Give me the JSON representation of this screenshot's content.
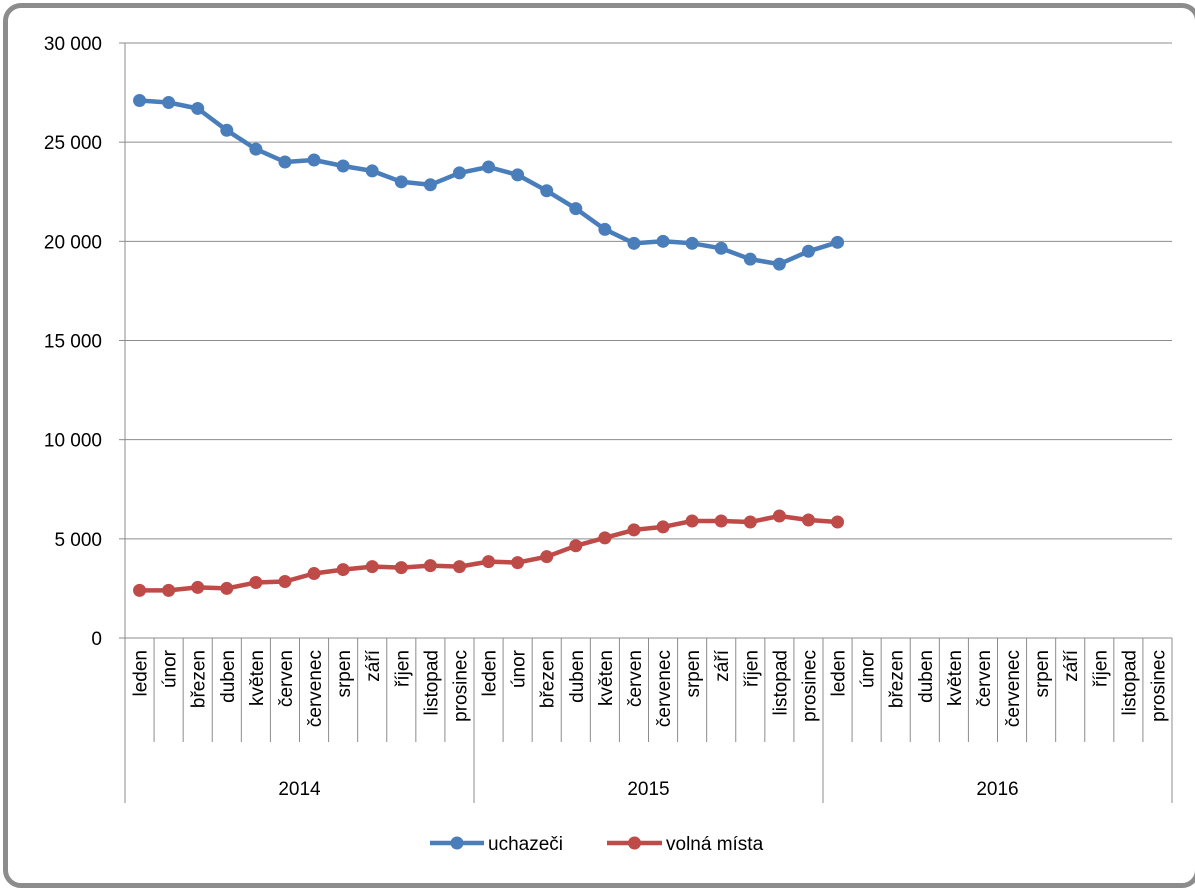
{
  "chart_data": {
    "type": "line",
    "title": "",
    "xlabel": "",
    "ylabel": "",
    "ylim": [
      0,
      30000
    ],
    "yticks": [
      0,
      5000,
      10000,
      15000,
      20000,
      25000,
      30000
    ],
    "ytick_labels": [
      "0",
      "5 000",
      "10 000",
      "15 000",
      "20 000",
      "25 000",
      "30 000"
    ],
    "months": [
      "leden",
      "únor",
      "březen",
      "duben",
      "květen",
      "červen",
      "červenec",
      "srpen",
      "září",
      "říjen",
      "listopad",
      "prosinec"
    ],
    "years": [
      "2014",
      "2015",
      "2016"
    ],
    "grid": "horizontal",
    "legend_position": "bottom",
    "series": [
      {
        "name": "uchazeči",
        "color": "#4a7ebb",
        "values": [
          27100,
          27000,
          26700,
          25600,
          24650,
          24000,
          24100,
          23800,
          23550,
          23000,
          22850,
          23450,
          23750,
          23350,
          22550,
          21650,
          20600,
          19900,
          20000,
          19900,
          19650,
          19100,
          18850,
          19500,
          19950
        ]
      },
      {
        "name": "volná místa",
        "color": "#be4b48",
        "values": [
          2400,
          2400,
          2550,
          2500,
          2800,
          2850,
          3250,
          3450,
          3600,
          3550,
          3650,
          3600,
          3850,
          3800,
          4100,
          4650,
          5050,
          5450,
          5600,
          5900,
          5900,
          5850,
          6150,
          5950,
          5850
        ]
      }
    ]
  }
}
